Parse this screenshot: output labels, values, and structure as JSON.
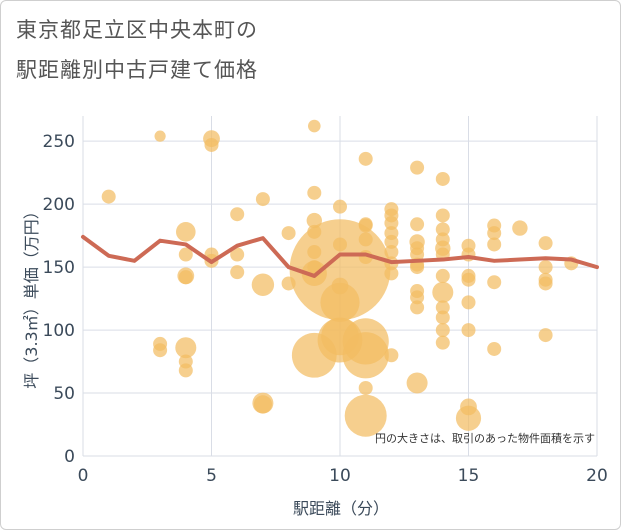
{
  "chart_data": {
    "type": "scatter",
    "title_line1": "東京都足立区中央本町の",
    "title_line2": "駅距離別中古戸建て価格",
    "xlabel": "駅距離（分）",
    "ylabel": "坪（3.3㎡）単価（万円）",
    "xlim": [
      0,
      20
    ],
    "ylim": [
      0,
      270
    ],
    "xticks": [
      0,
      5,
      10,
      15,
      20
    ],
    "yticks": [
      0,
      50,
      100,
      150,
      200,
      250
    ],
    "note": "円の大きさは、取引のあった物件面積を示す",
    "colors": {
      "bubble": "#f3bc63",
      "line": "#cd6a55",
      "grid": "#d9dde6"
    },
    "points": [
      {
        "x": 1,
        "y": 206,
        "s": 1
      },
      {
        "x": 3,
        "y": 254,
        "s": 0.8
      },
      {
        "x": 3,
        "y": 89,
        "s": 1
      },
      {
        "x": 3,
        "y": 84,
        "s": 1
      },
      {
        "x": 4,
        "y": 178,
        "s": 1.4
      },
      {
        "x": 4,
        "y": 160,
        "s": 1
      },
      {
        "x": 4,
        "y": 143,
        "s": 1.2
      },
      {
        "x": 4,
        "y": 142,
        "s": 1
      },
      {
        "x": 4,
        "y": 86,
        "s": 1.5
      },
      {
        "x": 4,
        "y": 75,
        "s": 1
      },
      {
        "x": 4,
        "y": 68,
        "s": 1
      },
      {
        "x": 5,
        "y": 252,
        "s": 1.2
      },
      {
        "x": 5,
        "y": 247,
        "s": 1
      },
      {
        "x": 5,
        "y": 160,
        "s": 1
      },
      {
        "x": 5,
        "y": 155,
        "s": 1
      },
      {
        "x": 6,
        "y": 192,
        "s": 1
      },
      {
        "x": 6,
        "y": 160,
        "s": 1
      },
      {
        "x": 6,
        "y": 146,
        "s": 1
      },
      {
        "x": 7,
        "y": 204,
        "s": 1
      },
      {
        "x": 7,
        "y": 136,
        "s": 1.6
      },
      {
        "x": 7,
        "y": 42,
        "s": 1.5
      },
      {
        "x": 7,
        "y": 41,
        "s": 1.3
      },
      {
        "x": 8,
        "y": 177,
        "s": 1
      },
      {
        "x": 8,
        "y": 137,
        "s": 1
      },
      {
        "x": 9,
        "y": 262,
        "s": 0.9
      },
      {
        "x": 9,
        "y": 209,
        "s": 1
      },
      {
        "x": 9,
        "y": 187,
        "s": 1.1
      },
      {
        "x": 9,
        "y": 178,
        "s": 1
      },
      {
        "x": 9,
        "y": 162,
        "s": 1
      },
      {
        "x": 9,
        "y": 150,
        "s": 1
      },
      {
        "x": 9,
        "y": 145,
        "s": 1.8
      },
      {
        "x": 9,
        "y": 80,
        "s": 3.2
      },
      {
        "x": 10,
        "y": 198,
        "s": 1
      },
      {
        "x": 10,
        "y": 168,
        "s": 1
      },
      {
        "x": 10,
        "y": 148,
        "s": 7.2
      },
      {
        "x": 10,
        "y": 135,
        "s": 1.2
      },
      {
        "x": 10,
        "y": 122,
        "s": 2.8
      },
      {
        "x": 10,
        "y": 95,
        "s": 2.7
      },
      {
        "x": 10,
        "y": 92,
        "s": 3.2
      },
      {
        "x": 11,
        "y": 236,
        "s": 1
      },
      {
        "x": 11,
        "y": 184,
        "s": 1
      },
      {
        "x": 11,
        "y": 183,
        "s": 1
      },
      {
        "x": 11,
        "y": 172,
        "s": 1
      },
      {
        "x": 11,
        "y": 158,
        "s": 1
      },
      {
        "x": 11,
        "y": 91,
        "s": 3.3
      },
      {
        "x": 11,
        "y": 80,
        "s": 3.3
      },
      {
        "x": 11,
        "y": 54,
        "s": 1
      },
      {
        "x": 11,
        "y": 32,
        "s": 3
      },
      {
        "x": 12,
        "y": 196,
        "s": 1
      },
      {
        "x": 12,
        "y": 191,
        "s": 1
      },
      {
        "x": 12,
        "y": 185,
        "s": 1
      },
      {
        "x": 12,
        "y": 177,
        "s": 1
      },
      {
        "x": 12,
        "y": 170,
        "s": 1
      },
      {
        "x": 12,
        "y": 162,
        "s": 1
      },
      {
        "x": 12,
        "y": 153,
        "s": 1
      },
      {
        "x": 12,
        "y": 145,
        "s": 1
      },
      {
        "x": 12,
        "y": 80,
        "s": 1
      },
      {
        "x": 13,
        "y": 229,
        "s": 1
      },
      {
        "x": 13,
        "y": 184,
        "s": 1
      },
      {
        "x": 13,
        "y": 170,
        "s": 1.1
      },
      {
        "x": 13,
        "y": 165,
        "s": 1
      },
      {
        "x": 13,
        "y": 160,
        "s": 1
      },
      {
        "x": 13,
        "y": 152,
        "s": 1
      },
      {
        "x": 13,
        "y": 150,
        "s": 1
      },
      {
        "x": 13,
        "y": 131,
        "s": 1
      },
      {
        "x": 13,
        "y": 126,
        "s": 1
      },
      {
        "x": 13,
        "y": 118,
        "s": 1
      },
      {
        "x": 13,
        "y": 58,
        "s": 1.5
      },
      {
        "x": 14,
        "y": 220,
        "s": 1
      },
      {
        "x": 14,
        "y": 191,
        "s": 1
      },
      {
        "x": 14,
        "y": 180,
        "s": 1
      },
      {
        "x": 14,
        "y": 172,
        "s": 1
      },
      {
        "x": 14,
        "y": 165,
        "s": 1.1
      },
      {
        "x": 14,
        "y": 160,
        "s": 1
      },
      {
        "x": 14,
        "y": 143,
        "s": 1
      },
      {
        "x": 14,
        "y": 130,
        "s": 1.5
      },
      {
        "x": 14,
        "y": 118,
        "s": 1
      },
      {
        "x": 14,
        "y": 110,
        "s": 1
      },
      {
        "x": 14,
        "y": 100,
        "s": 1
      },
      {
        "x": 14,
        "y": 90,
        "s": 1
      },
      {
        "x": 15,
        "y": 167,
        "s": 1
      },
      {
        "x": 15,
        "y": 160,
        "s": 1
      },
      {
        "x": 15,
        "y": 143,
        "s": 1
      },
      {
        "x": 15,
        "y": 140,
        "s": 1
      },
      {
        "x": 15,
        "y": 122,
        "s": 1
      },
      {
        "x": 15,
        "y": 100,
        "s": 1
      },
      {
        "x": 15,
        "y": 39,
        "s": 1.2
      },
      {
        "x": 15,
        "y": 30,
        "s": 1.8
      },
      {
        "x": 16,
        "y": 183,
        "s": 1
      },
      {
        "x": 16,
        "y": 177,
        "s": 1
      },
      {
        "x": 16,
        "y": 168,
        "s": 1
      },
      {
        "x": 16,
        "y": 138,
        "s": 1
      },
      {
        "x": 16,
        "y": 85,
        "s": 1
      },
      {
        "x": 17,
        "y": 181,
        "s": 1.1
      },
      {
        "x": 18,
        "y": 169,
        "s": 1
      },
      {
        "x": 18,
        "y": 150,
        "s": 1
      },
      {
        "x": 18,
        "y": 140,
        "s": 1
      },
      {
        "x": 18,
        "y": 137,
        "s": 1
      },
      {
        "x": 18,
        "y": 96,
        "s": 1
      },
      {
        "x": 19,
        "y": 153,
        "s": 1
      }
    ],
    "line": [
      {
        "x": 0,
        "y": 174
      },
      {
        "x": 1,
        "y": 159
      },
      {
        "x": 2,
        "y": 155
      },
      {
        "x": 3,
        "y": 171
      },
      {
        "x": 4,
        "y": 168
      },
      {
        "x": 5,
        "y": 154
      },
      {
        "x": 6,
        "y": 167
      },
      {
        "x": 7,
        "y": 173
      },
      {
        "x": 8,
        "y": 150
      },
      {
        "x": 9,
        "y": 143
      },
      {
        "x": 10,
        "y": 160
      },
      {
        "x": 11,
        "y": 160
      },
      {
        "x": 12,
        "y": 154
      },
      {
        "x": 13,
        "y": 155
      },
      {
        "x": 14,
        "y": 156
      },
      {
        "x": 15,
        "y": 158
      },
      {
        "x": 16,
        "y": 155
      },
      {
        "x": 17,
        "y": 156
      },
      {
        "x": 18,
        "y": 157
      },
      {
        "x": 19,
        "y": 156
      },
      {
        "x": 20,
        "y": 150
      }
    ]
  }
}
